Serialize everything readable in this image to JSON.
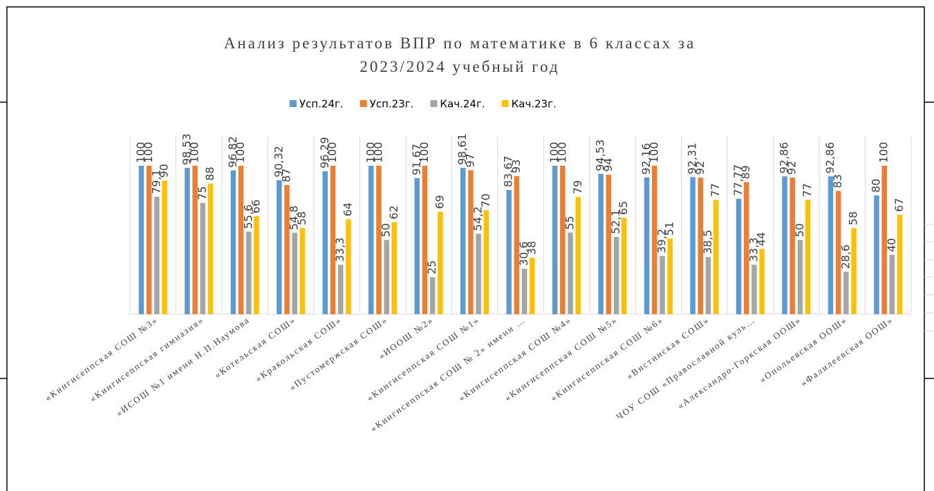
{
  "chart_data": {
    "type": "bar",
    "title": [
      "Анализ результатов ВПР по математике в 6 классах за",
      "2023/2024 учебный год"
    ],
    "categories": [
      "«Кингисеппская СОШ №3»",
      "«Кингисеппская гимназия»",
      "«ИСОШ №1 имени Н.П.Наумова",
      "«Котельская СОШ»",
      "«Кракольская СОШ»",
      "«Пустомержская СОШ»",
      "«ИООШ №2»",
      "«Кингисеппская СОШ №1»",
      "«Кингисеппская СОШ № 2» имени …",
      "«Кингисеппская СОШ №4»",
      "«Кингисеппская СОШ №5»",
      "«Кингисеппская СОШ №6»",
      "«Вистинская СОШ»",
      "ЧОУ СОШ «Православной куль…",
      "«Александро-Горкская ООШ»",
      "«Опольевская ООШ»",
      "«Фалилеевская ООШ»"
    ],
    "series": [
      {
        "name": "Усп.24г.",
        "color": "#5b9bd5",
        "values": [
          100,
          98.53,
          96.82,
          90.32,
          96.29,
          100,
          91.67,
          98.61,
          83.67,
          100,
          94.53,
          92.16,
          92.31,
          77.77,
          92.86,
          92.86,
          80
        ],
        "value_labels": [
          "100",
          "98,53",
          "96,82",
          "90,32",
          "96,29",
          "100",
          "91,67",
          "98,61",
          "83,67",
          "100",
          "94,53",
          "92,16",
          "92,31",
          "77,77",
          "92,86",
          "92,86",
          "80"
        ]
      },
      {
        "name": "Усп.23г.",
        "color": "#ed7d31",
        "values": [
          100,
          100,
          100,
          87,
          100,
          100,
          100,
          97,
          93,
          100,
          94,
          100,
          92,
          89,
          92,
          83,
          100
        ]
      },
      {
        "name": "Кач.24г.",
        "color": "#a5a5a5",
        "values": [
          79.1,
          75,
          55.6,
          54.8,
          33.3,
          50,
          25,
          54.2,
          30.6,
          55,
          52.1,
          39.2,
          38.5,
          33.3,
          50,
          28.6,
          40
        ],
        "value_labels": [
          "79,1",
          "75",
          "55,6",
          "54,8",
          "33,3",
          "50",
          "25",
          "54,2",
          "30,6",
          "55",
          "52,1",
          "39,2",
          "38,5",
          "33,3",
          "50",
          "28,6",
          "40"
        ]
      },
      {
        "name": "Кач.23г.",
        "color": "#ffc000",
        "values": [
          90,
          88,
          66,
          58,
          64,
          62,
          69,
          70,
          38,
          79,
          65,
          51,
          77,
          44,
          77,
          58,
          67
        ]
      }
    ],
    "ylim": [
      0,
      120
    ],
    "legend": "top"
  }
}
